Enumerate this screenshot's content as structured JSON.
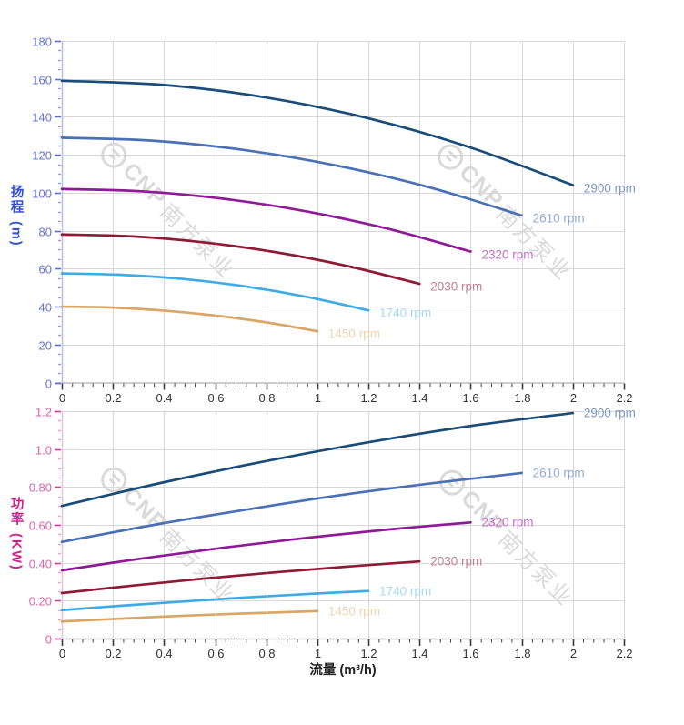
{
  "watermark": {
    "brand": "CNP",
    "text": "南方泵业",
    "color": "#dadada"
  },
  "x_axis": {
    "title": "流量 (m³/h)",
    "range": [
      0,
      2.2
    ],
    "minor_step": 0.04,
    "colors": {
      "label": "#333333",
      "tick": "#3c3c3c",
      "line": "#bdbdbd"
    },
    "ticks": [
      {
        "v": 0,
        "label": "0"
      },
      {
        "v": 0.2,
        "label": "0.2"
      },
      {
        "v": 0.4,
        "label": "0.4"
      },
      {
        "v": 0.6,
        "label": "0.6"
      },
      {
        "v": 0.8,
        "label": "0.8"
      },
      {
        "v": 1,
        "label": "1"
      },
      {
        "v": 1.2,
        "label": "1.2"
      },
      {
        "v": 1.4,
        "label": "1.4"
      },
      {
        "v": 1.6,
        "label": "1.6"
      },
      {
        "v": 1.8,
        "label": "1.8"
      },
      {
        "v": 2,
        "label": "2"
      },
      {
        "v": 2.2,
        "label": "2.2"
      }
    ]
  },
  "chart_data": [
    {
      "type": "line",
      "name": "head-vs-flow",
      "title": "",
      "ylabel_cn": "扬程",
      "ylabel_unit": "(m)",
      "ylabel_color": "#3550cf",
      "xlabel": "流量 (m³/h)",
      "xlim": [
        0,
        2.2
      ],
      "ylim": [
        0,
        180
      ],
      "grid": true,
      "grid_color": "#d8d8d8",
      "y_minor_step": 5,
      "legend_position": "end-of-curve labels",
      "axis_colors": {
        "label": "#6472d8",
        "tick": "#5b6fd6",
        "tick_minor": "#8d9ce5",
        "line": "#b6bfe9"
      },
      "y_ticks": [
        {
          "v": 0,
          "label": "0"
        },
        {
          "v": 20,
          "label": "20"
        },
        {
          "v": 40,
          "label": "40"
        },
        {
          "v": 60,
          "label": "60"
        },
        {
          "v": 80,
          "label": "80"
        },
        {
          "v": 100,
          "label": "100"
        },
        {
          "v": 120,
          "label": "120"
        },
        {
          "v": 140,
          "label": "140"
        },
        {
          "v": 160,
          "label": "160"
        },
        {
          "v": 180,
          "label": "180"
        }
      ],
      "series": [
        {
          "name": "2900 rpm",
          "color": "#1b4c77",
          "label_color": "#7b97c4",
          "x": [
            0,
            0.4,
            0.8,
            1.2,
            1.6,
            2.0
          ],
          "y": [
            159,
            156.8,
            150.2,
            139.2,
            123.8,
            104
          ]
        },
        {
          "name": "2610 rpm",
          "color": "#4a70b5",
          "label_color": "#94a9db",
          "x": [
            0,
            0.36,
            0.72,
            1.08,
            1.44,
            1.8
          ],
          "y": [
            129,
            127.4,
            122.4,
            114.2,
            102.8,
            88
          ]
        },
        {
          "name": "2320 rpm",
          "color": "#8f1a96",
          "label_color": "#c46ec4",
          "x": [
            0,
            0.32,
            0.64,
            0.96,
            1.28,
            1.6
          ],
          "y": [
            102,
            100.7,
            96.7,
            90.1,
            80.9,
            69
          ]
        },
        {
          "name": "2030 rpm",
          "color": "#8f1a35",
          "label_color": "#c27f91",
          "x": [
            0,
            0.28,
            0.56,
            0.84,
            1.12,
            1.4
          ],
          "y": [
            78,
            77,
            73.8,
            68.6,
            61.3,
            52
          ]
        },
        {
          "name": "1740 rpm",
          "color": "#3fabe4",
          "label_color": "#a8d9f3",
          "x": [
            0,
            0.24,
            0.48,
            0.72,
            0.96,
            1.2
          ],
          "y": [
            57.5,
            56.7,
            54.5,
            50.6,
            45.1,
            38
          ]
        },
        {
          "name": "1450 rpm",
          "color": "#d8a666",
          "label_color": "#eed5ae",
          "x": [
            0,
            0.2,
            0.4,
            0.6,
            0.8,
            1.0
          ],
          "y": [
            40,
            39.5,
            37.9,
            35.3,
            31.7,
            27
          ]
        }
      ]
    },
    {
      "type": "line",
      "name": "power-vs-flow",
      "title": "",
      "ylabel_cn": "功率",
      "ylabel_unit": "(KW)",
      "ylabel_color": "#cc2390",
      "xlabel": "流量 (m³/h)",
      "xlim": [
        0,
        2.2
      ],
      "ylim": [
        0,
        1.2
      ],
      "grid": true,
      "grid_color": "#d8d8d8",
      "y_minor_step": 0.05,
      "legend_position": "end-of-curve labels",
      "axis_colors": {
        "label": "#de64a8",
        "tick": "#d93a9e",
        "tick_minor": "#efa0cd",
        "line": "#e8c4dc"
      },
      "y_ticks": [
        {
          "v": 0,
          "label": "0"
        },
        {
          "v": 0.2,
          "label": "0.20"
        },
        {
          "v": 0.4,
          "label": "0.40"
        },
        {
          "v": 0.6,
          "label": "0.60"
        },
        {
          "v": 0.8,
          "label": "0.80"
        },
        {
          "v": 1.0,
          "label": "1.0"
        },
        {
          "v": 1.2,
          "label": "1.2"
        }
      ],
      "series": [
        {
          "name": "2900 rpm",
          "color": "#1b4c77",
          "label_color": "#7b97c4",
          "x": [
            0,
            0.4,
            0.8,
            1.2,
            1.6,
            2.0
          ],
          "y": [
            0.7,
            0.825,
            0.937,
            1.036,
            1.122,
            1.19
          ]
        },
        {
          "name": "2610 rpm",
          "color": "#4a70b5",
          "label_color": "#94a9db",
          "x": [
            0,
            0.36,
            0.72,
            1.08,
            1.44,
            1.8
          ],
          "y": [
            0.51,
            0.6,
            0.68,
            0.755,
            0.818,
            0.874
          ]
        },
        {
          "name": "2320 rpm",
          "color": "#8f1a96",
          "label_color": "#c46ec4",
          "x": [
            0,
            0.32,
            0.64,
            0.96,
            1.28,
            1.6
          ],
          "y": [
            0.36,
            0.424,
            0.481,
            0.532,
            0.576,
            0.613
          ]
        },
        {
          "name": "2030 rpm",
          "color": "#8f1a35",
          "label_color": "#c27f91",
          "x": [
            0,
            0.28,
            0.56,
            0.84,
            1.12,
            1.4
          ],
          "y": [
            0.24,
            0.28,
            0.317,
            0.35,
            0.38,
            0.407
          ]
        },
        {
          "name": "1740 rpm",
          "color": "#3fabe4",
          "label_color": "#a8d9f3",
          "x": [
            0,
            0.24,
            0.48,
            0.72,
            0.96,
            1.2
          ],
          "y": [
            0.15,
            0.174,
            0.196,
            0.217,
            0.235,
            0.251
          ]
        },
        {
          "name": "1450 rpm",
          "color": "#d8a666",
          "label_color": "#eed5ae",
          "x": [
            0,
            0.2,
            0.4,
            0.6,
            0.8,
            1.0
          ],
          "y": [
            0.09,
            0.103,
            0.116,
            0.127,
            0.136,
            0.145
          ]
        }
      ]
    }
  ]
}
